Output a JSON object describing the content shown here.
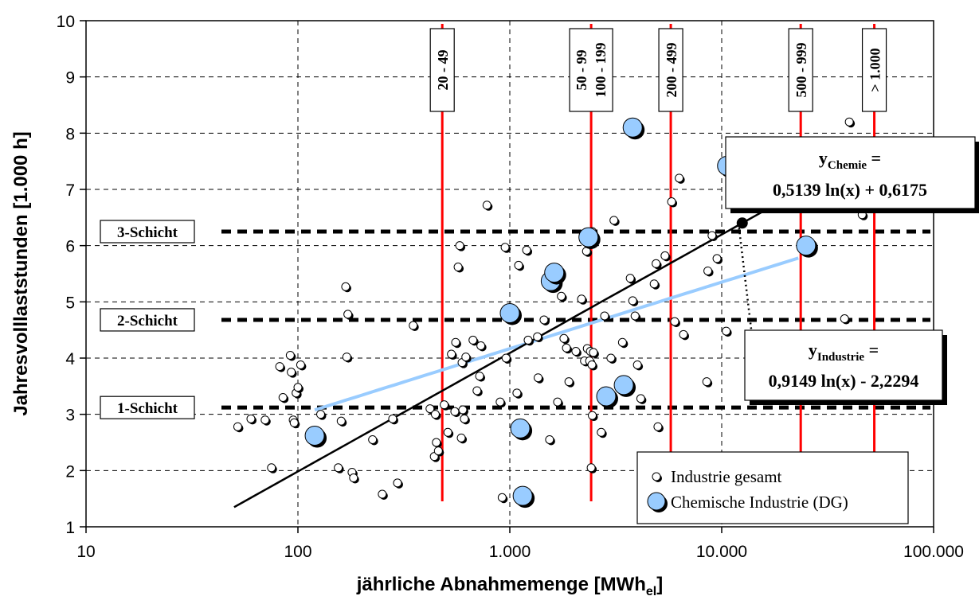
{
  "chart_data": {
    "type": "scatter",
    "xscale": "log",
    "xlim": [
      10,
      100000
    ],
    "ylim": [
      1,
      10
    ],
    "x_ticks": [
      "10",
      "100",
      "1.000",
      "10.000",
      "100.000"
    ],
    "y_ticks": [
      "1",
      "2",
      "3",
      "4",
      "5",
      "6",
      "7",
      "8",
      "9",
      "10"
    ],
    "xlabel": "jährliche Abnahmemenge [MWh",
    "xlabel_sub": "el",
    "xlabel_end": "]",
    "ylabel": "Jahresvolllaststunden [1.000 h]",
    "grid": true,
    "legend_position": "bottom-right",
    "colors": {
      "chemie": "#99ccff",
      "red_line": "#ff0000",
      "trend_chemie": "#99ccff",
      "trend_industrie": "#000000"
    },
    "series": [
      {
        "name": "Industrie gesamt",
        "points": [
          [
            52,
            2.78
          ],
          [
            60,
            2.92
          ],
          [
            70,
            2.9
          ],
          [
            75,
            2.05
          ],
          [
            82,
            3.85
          ],
          [
            85,
            3.3
          ],
          [
            92,
            4.05
          ],
          [
            93,
            3.75
          ],
          [
            95,
            2.9
          ],
          [
            96,
            2.85
          ],
          [
            98,
            3.38
          ],
          [
            100,
            3.48
          ],
          [
            103,
            3.88
          ],
          [
            128,
            3.0
          ],
          [
            155,
            2.05
          ],
          [
            160,
            2.88
          ],
          [
            168,
            5.27
          ],
          [
            170,
            4.02
          ],
          [
            172,
            4.78
          ],
          [
            180,
            1.97
          ],
          [
            183,
            1.87
          ],
          [
            225,
            2.55
          ],
          [
            250,
            1.58
          ],
          [
            280,
            2.92
          ],
          [
            295,
            1.78
          ],
          [
            350,
            4.58
          ],
          [
            420,
            3.1
          ],
          [
            440,
            2.25
          ],
          [
            445,
            3.0
          ],
          [
            450,
            2.5
          ],
          [
            460,
            2.35
          ],
          [
            490,
            3.17
          ],
          [
            510,
            2.68
          ],
          [
            530,
            4.07
          ],
          [
            550,
            3.05
          ],
          [
            555,
            4.28
          ],
          [
            570,
            5.62
          ],
          [
            580,
            6.0
          ],
          [
            590,
            2.58
          ],
          [
            595,
            3.92
          ],
          [
            600,
            3.08
          ],
          [
            610,
            2.92
          ],
          [
            620,
            4.02
          ],
          [
            670,
            4.32
          ],
          [
            700,
            3.42
          ],
          [
            720,
            3.68
          ],
          [
            730,
            4.22
          ],
          [
            780,
            6.72
          ],
          [
            900,
            3.22
          ],
          [
            920,
            1.52
          ],
          [
            950,
            5.97
          ],
          [
            960,
            4.0
          ],
          [
            1080,
            3.38
          ],
          [
            1100,
            5.65
          ],
          [
            1200,
            5.92
          ],
          [
            1220,
            4.32
          ],
          [
            1350,
            4.38
          ],
          [
            1360,
            3.65
          ],
          [
            1450,
            4.68
          ],
          [
            1540,
            2.55
          ],
          [
            1680,
            3.22
          ],
          [
            1750,
            5.1
          ],
          [
            1800,
            4.35
          ],
          [
            1850,
            4.18
          ],
          [
            1900,
            3.58
          ],
          [
            2050,
            4.12
          ],
          [
            2180,
            5.05
          ],
          [
            2250,
            3.95
          ],
          [
            2300,
            5.9
          ],
          [
            2320,
            4.17
          ],
          [
            2380,
            3.95
          ],
          [
            2400,
            4.12
          ],
          [
            2420,
            2.05
          ],
          [
            2440,
            3.88
          ],
          [
            2450,
            2.98
          ],
          [
            2450,
            6.25
          ],
          [
            2480,
            4.1
          ],
          [
            2700,
            2.68
          ],
          [
            2800,
            4.75
          ],
          [
            3000,
            4.0
          ],
          [
            3100,
            6.45
          ],
          [
            3400,
            4.28
          ],
          [
            3700,
            5.42
          ],
          [
            3800,
            5.02
          ],
          [
            3900,
            4.75
          ],
          [
            4000,
            3.88
          ],
          [
            4150,
            3.28
          ],
          [
            4800,
            5.32
          ],
          [
            4900,
            5.68
          ],
          [
            5000,
            2.78
          ],
          [
            5400,
            5.82
          ],
          [
            5800,
            6.78
          ],
          [
            6000,
            4.65
          ],
          [
            6300,
            7.2
          ],
          [
            6600,
            4.42
          ],
          [
            8500,
            3.58
          ],
          [
            8600,
            5.55
          ],
          [
            9000,
            6.18
          ],
          [
            9500,
            5.77
          ],
          [
            10500,
            4.48
          ],
          [
            16000,
            7.58
          ],
          [
            38000,
            4.7
          ],
          [
            40000,
            8.2
          ],
          [
            46000,
            6.55
          ]
        ]
      },
      {
        "name": "Chemische Industrie (DG)",
        "points": [
          [
            120,
            2.62
          ],
          [
            1000,
            4.8
          ],
          [
            1120,
            2.75
          ],
          [
            1150,
            1.55
          ],
          [
            1560,
            5.37
          ],
          [
            1620,
            5.52
          ],
          [
            2350,
            6.15
          ],
          [
            2850,
            3.32
          ],
          [
            3450,
            3.52
          ],
          [
            3800,
            8.1
          ],
          [
            10600,
            7.42
          ],
          [
            25000,
            6.0
          ]
        ]
      }
    ],
    "trendlines": [
      {
        "series": "Industrie gesamt",
        "x_range": [
          50,
          45000
        ]
      },
      {
        "series": "Chemische Industrie (DG)",
        "x_range": [
          120,
          23000
        ]
      }
    ],
    "hlines": [
      {
        "label": "1-Schicht",
        "y": 3.12
      },
      {
        "label": "2-Schicht",
        "y": 4.68
      },
      {
        "label": "3-Schicht",
        "y": 6.25
      }
    ],
    "vlines": [
      {
        "labels": [
          "20 - 49"
        ],
        "x": 480
      },
      {
        "labels": [
          "50 - 99",
          "100 - 199"
        ],
        "x": 2420
      },
      {
        "labels": [
          "200 - 499"
        ],
        "x": 5750
      },
      {
        "labels": [
          "500 - 999"
        ],
        "x": 23600
      },
      {
        "labels": [
          "> 1.000"
        ],
        "x": 52500
      }
    ],
    "annotations": [
      {
        "id": "chemie",
        "lines": [
          [
            "y",
            "Chemie",
            " ="
          ],
          [
            "0,5139 ln(x) + 0,6175",
            "",
            ""
          ]
        ]
      },
      {
        "id": "industrie",
        "lines": [
          [
            "y",
            "Industrie",
            " ="
          ],
          [
            "0,9149 ln(x) - 2,2294",
            "",
            ""
          ]
        ]
      }
    ]
  }
}
